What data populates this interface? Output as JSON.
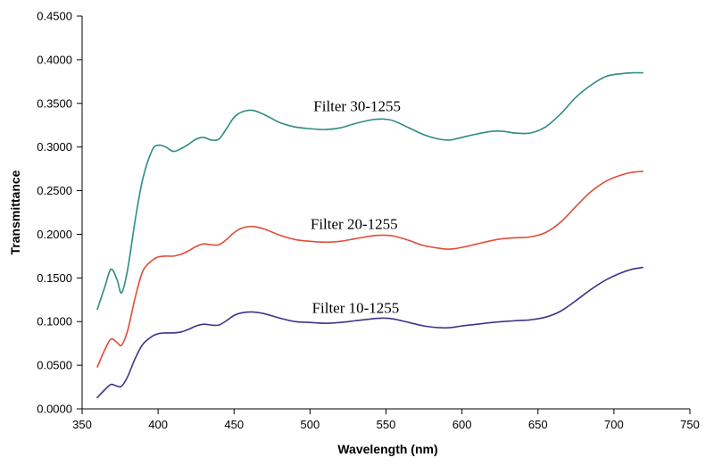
{
  "chart_data": {
    "type": "line",
    "title": "",
    "xlabel": "Wavelength (nm)",
    "ylabel": "Transmittance",
    "xlim": [
      350,
      750
    ],
    "ylim": [
      0,
      0.45
    ],
    "grid": false,
    "x_ticks": [
      "350",
      "400",
      "450",
      "500",
      "550",
      "600",
      "650",
      "700",
      "750"
    ],
    "y_ticks": [
      "0.0000",
      "0.0500",
      "0.1000",
      "0.1500",
      "0.2000",
      "0.2500",
      "0.3000",
      "0.3500",
      "0.4000",
      "0.4500"
    ],
    "series": [
      {
        "name": "Filter 30-1255",
        "label": "Filter 30-1255",
        "color": "#2e8b82",
        "x": [
          360,
          365,
          369,
          373,
          376,
          380,
          385,
          390,
          396,
          400,
          405,
          410,
          415,
          420,
          425,
          430,
          435,
          440,
          445,
          450,
          455,
          462,
          470,
          480,
          490,
          500,
          510,
          520,
          530,
          540,
          548,
          555,
          565,
          575,
          585,
          592,
          600,
          610,
          620,
          627,
          635,
          645,
          655,
          665,
          675,
          685,
          695,
          705,
          712,
          719
        ],
        "values": [
          0.114,
          0.14,
          0.16,
          0.148,
          0.133,
          0.16,
          0.217,
          0.264,
          0.296,
          0.302,
          0.3,
          0.295,
          0.298,
          0.303,
          0.309,
          0.311,
          0.308,
          0.309,
          0.321,
          0.334,
          0.34,
          0.342,
          0.337,
          0.328,
          0.323,
          0.321,
          0.32,
          0.322,
          0.327,
          0.331,
          0.332,
          0.33,
          0.322,
          0.314,
          0.309,
          0.308,
          0.311,
          0.315,
          0.318,
          0.318,
          0.316,
          0.316,
          0.323,
          0.338,
          0.357,
          0.371,
          0.381,
          0.384,
          0.385,
          0.385
        ]
      },
      {
        "name": "Filter 20-1255",
        "label": "Filter 20-1255",
        "color": "#e04d38",
        "x": [
          360,
          365,
          369,
          373,
          376,
          380,
          385,
          390,
          396,
          400,
          405,
          410,
          415,
          420,
          425,
          430,
          435,
          440,
          445,
          450,
          455,
          462,
          470,
          480,
          490,
          500,
          510,
          520,
          530,
          540,
          548,
          555,
          565,
          575,
          585,
          592,
          600,
          610,
          620,
          627,
          635,
          645,
          655,
          665,
          675,
          685,
          695,
          705,
          712,
          719
        ],
        "values": [
          0.048,
          0.068,
          0.08,
          0.076,
          0.073,
          0.09,
          0.128,
          0.158,
          0.17,
          0.174,
          0.175,
          0.175,
          0.177,
          0.181,
          0.186,
          0.189,
          0.188,
          0.188,
          0.194,
          0.202,
          0.207,
          0.209,
          0.206,
          0.199,
          0.194,
          0.192,
          0.191,
          0.192,
          0.195,
          0.198,
          0.199,
          0.198,
          0.193,
          0.187,
          0.184,
          0.183,
          0.185,
          0.189,
          0.193,
          0.195,
          0.196,
          0.197,
          0.202,
          0.214,
          0.232,
          0.249,
          0.261,
          0.268,
          0.271,
          0.272
        ]
      },
      {
        "name": "Filter 10-1255",
        "label": "Filter 10-1255",
        "color": "#3b3588",
        "x": [
          360,
          365,
          369,
          373,
          376,
          380,
          385,
          390,
          396,
          400,
          405,
          410,
          415,
          420,
          425,
          430,
          435,
          440,
          445,
          450,
          455,
          462,
          470,
          480,
          490,
          500,
          510,
          520,
          530,
          540,
          548,
          555,
          565,
          575,
          585,
          592,
          600,
          610,
          620,
          627,
          635,
          645,
          655,
          665,
          675,
          685,
          695,
          705,
          712,
          719
        ],
        "values": [
          0.013,
          0.022,
          0.028,
          0.026,
          0.026,
          0.037,
          0.058,
          0.074,
          0.083,
          0.086,
          0.087,
          0.087,
          0.088,
          0.091,
          0.095,
          0.097,
          0.096,
          0.096,
          0.101,
          0.107,
          0.11,
          0.111,
          0.109,
          0.104,
          0.1,
          0.099,
          0.098,
          0.099,
          0.101,
          0.103,
          0.104,
          0.103,
          0.099,
          0.095,
          0.093,
          0.093,
          0.095,
          0.097,
          0.099,
          0.1,
          0.101,
          0.102,
          0.105,
          0.112,
          0.124,
          0.137,
          0.148,
          0.156,
          0.16,
          0.162
        ]
      }
    ],
    "annotations": [
      {
        "series": "Filter 30-1255",
        "text": "Filter 30-1255",
        "x": 531,
        "y": 0.347
      },
      {
        "series": "Filter 20-1255",
        "text": "Filter 20-1255",
        "x": 529,
        "y": 0.212
      },
      {
        "series": "Filter 10-1255",
        "text": "Filter 10-1255",
        "x": 530,
        "y": 0.116
      }
    ]
  }
}
